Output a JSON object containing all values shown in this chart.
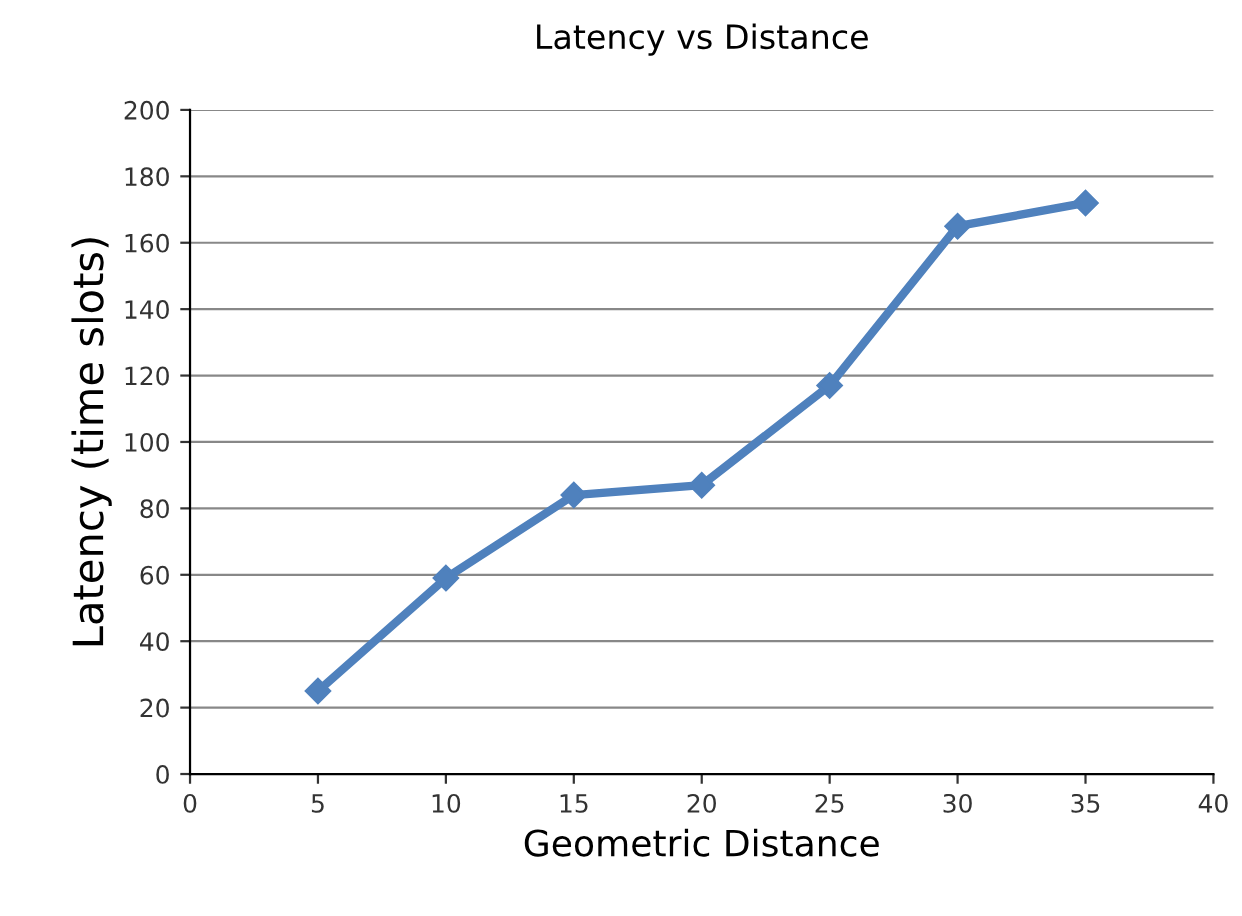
{
  "chart_data": {
    "type": "line",
    "title": "Latency vs Distance",
    "xlabel": "Geometric Distance",
    "ylabel": "Latency (time slots)",
    "x": [
      5,
      10,
      15,
      20,
      25,
      30,
      35
    ],
    "series": [
      {
        "color": "#4f81bd",
        "values": [
          25,
          59,
          84,
          87,
          117,
          165,
          172
        ]
      }
    ],
    "xlim": [
      0,
      40
    ],
    "xticks": [
      0,
      5,
      10,
      15,
      20,
      25,
      30,
      35,
      40
    ],
    "ylim": [
      0,
      200
    ],
    "yticks": [
      0,
      20,
      40,
      60,
      80,
      100,
      120,
      140,
      160,
      180,
      200
    ],
    "grid": "y",
    "marker": "diamond",
    "line_style": "solid"
  }
}
